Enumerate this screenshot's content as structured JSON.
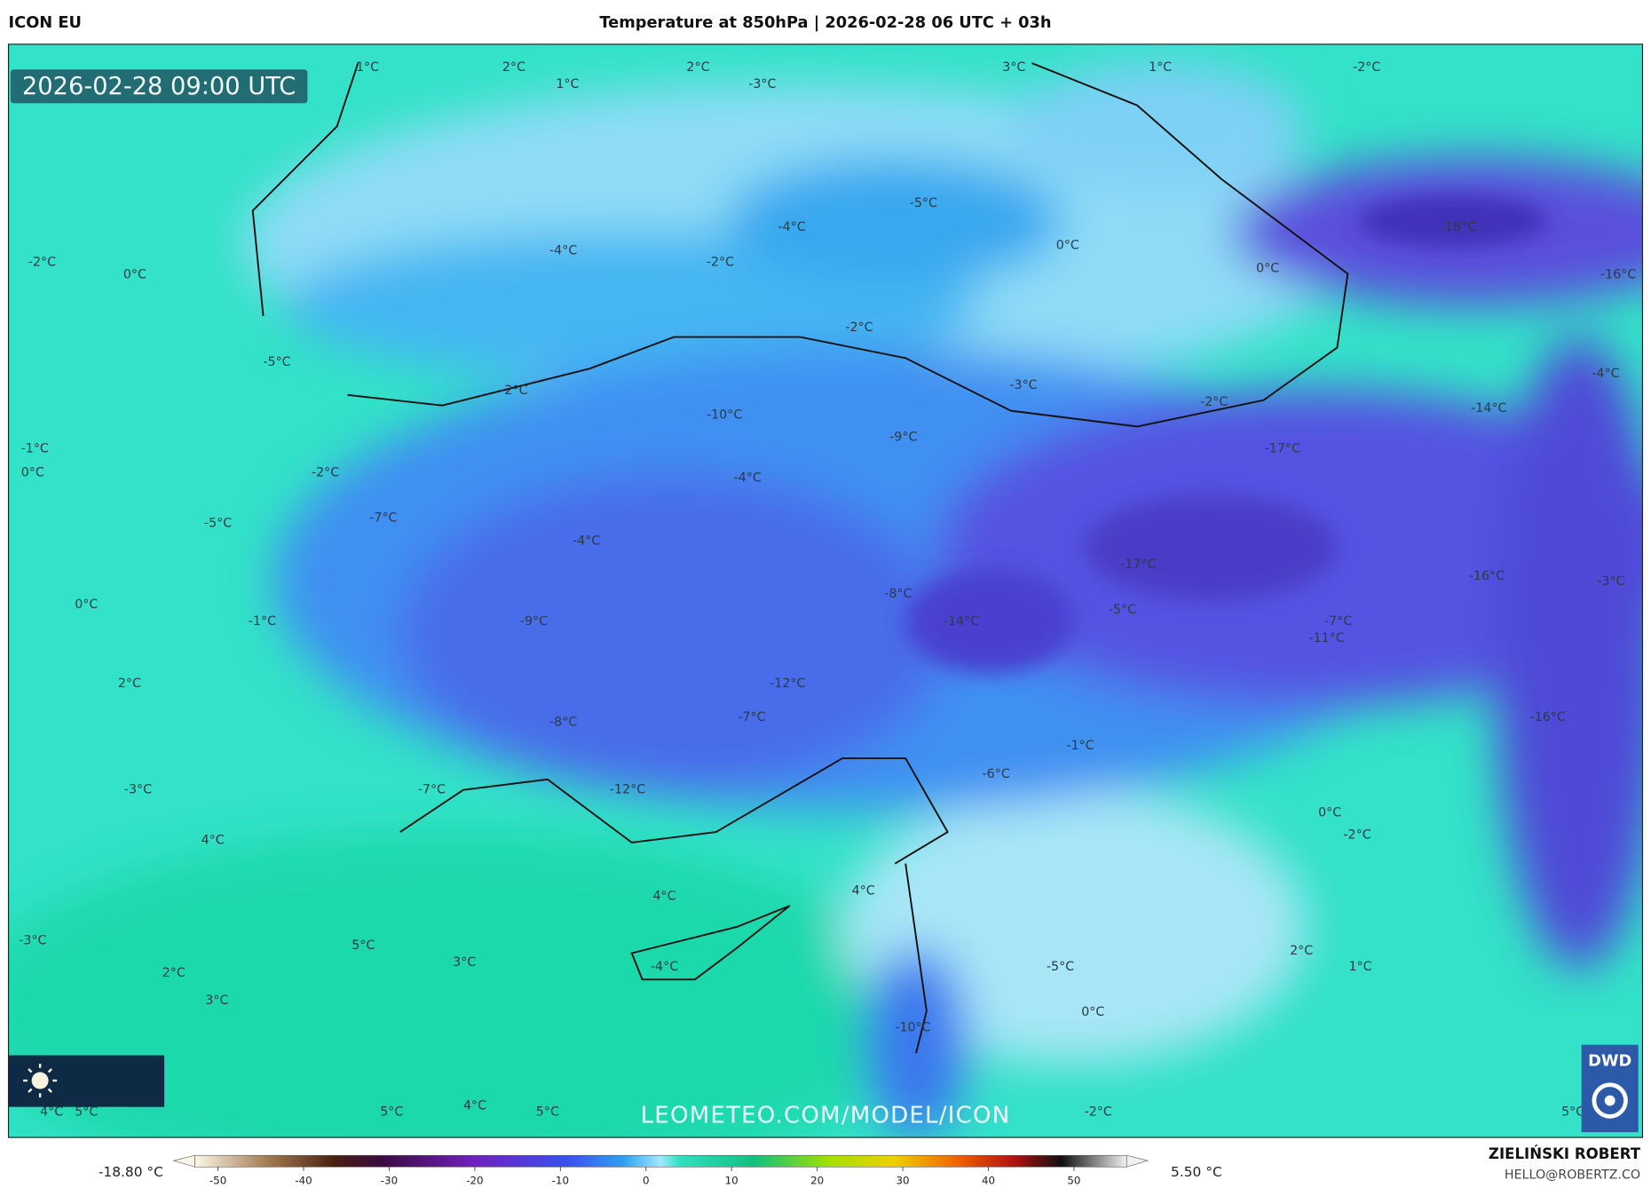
{
  "header": {
    "model": "ICON EU",
    "title": "Temperature at 850hPa | 2026-02-28 06 UTC + 03h",
    "valid_time": "2026-02-28 09:00 UTC",
    "watermark": "LEOMETEO.COM/MODEL/ICON"
  },
  "map": {
    "labels": [
      "1°C",
      "2°C",
      "1°C",
      "2°C",
      "-3°C",
      "3°C",
      "1°C",
      "-2°C",
      "-5°C",
      "-4°C",
      "-4°C",
      "-2°C",
      "0°C",
      "0°C",
      "-18°C",
      "-16°C",
      "-2°C",
      "0°C",
      "-2°C",
      "-5°C",
      "-2°C",
      "-3°C",
      "-2°C",
      "-4°C",
      "-14°C",
      "-10°C",
      "-9°C",
      "-17°C",
      "-1°C",
      "0°C",
      "-2°C",
      "-4°C",
      "-5°C",
      "-7°C",
      "-4°C",
      "-17°C",
      "-16°C",
      "-3°C",
      "-8°C",
      "0°C",
      "-5°C",
      "-1°C",
      "-9°C",
      "-14°C",
      "-7°C",
      "-11°C",
      "-12°C",
      "2°C",
      "-7°C",
      "-8°C",
      "-16°C",
      "-1°C",
      "-6°C",
      "-3°C",
      "-7°C",
      "-12°C",
      "0°C",
      "-2°C",
      "4°C",
      "4°C",
      "4°C",
      "-3°C",
      "5°C",
      "3°C",
      "-4°C",
      "-5°C",
      "2°C",
      "1°C",
      "2°C",
      "3°C",
      "0°C",
      "-10°C",
      "4°C",
      "5°C",
      "5°C",
      "4°C",
      "5°C",
      "-2°C",
      "5°C"
    ]
  },
  "logo": "DWD",
  "colorbar": {
    "min_label": "-18.80 °C",
    "max_label": "5.50 °C",
    "ticks": [
      -50,
      -40,
      -30,
      -20,
      -10,
      0,
      10,
      20,
      30,
      40,
      50
    ]
  },
  "credits": {
    "name": "ZIELIŃSKI ROBERT",
    "email": "HELLO@ROBERTZ.CO"
  }
}
